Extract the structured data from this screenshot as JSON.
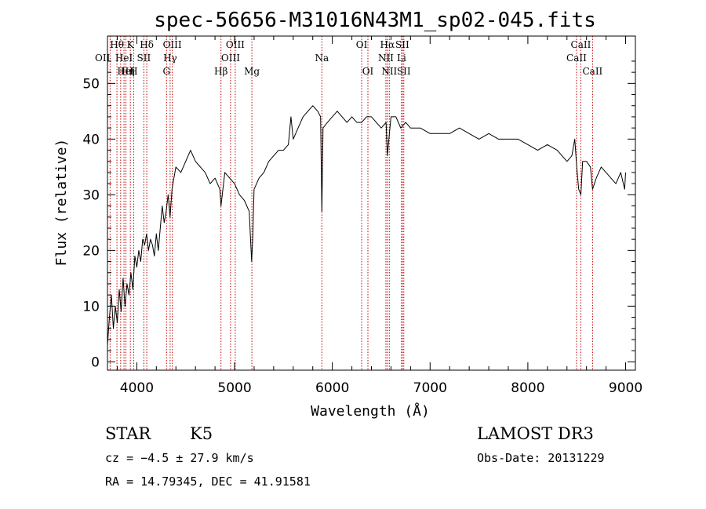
{
  "chart_data": {
    "type": "line",
    "title": "spec-56656-M31016N43M1_sp02-045.fits",
    "xlabel": "Wavelength (Å)",
    "ylabel": "Flux (relative)",
    "xlim": [
      3700,
      9100
    ],
    "ylim": [
      -1.5,
      58.5
    ],
    "xticks": [
      4000,
      5000,
      6000,
      7000,
      8000,
      9000
    ],
    "yticks": [
      0,
      10,
      20,
      30,
      40,
      50
    ],
    "series": [
      {
        "name": "flux",
        "x": [
          3700,
          3720,
          3740,
          3760,
          3780,
          3800,
          3820,
          3840,
          3860,
          3880,
          3900,
          3920,
          3940,
          3960,
          3980,
          4000,
          4020,
          4040,
          4060,
          4080,
          4100,
          4120,
          4140,
          4160,
          4180,
          4200,
          4220,
          4240,
          4260,
          4280,
          4300,
          4320,
          4340,
          4360,
          4380,
          4400,
          4450,
          4500,
          4550,
          4600,
          4650,
          4700,
          4750,
          4800,
          4850,
          4861,
          4900,
          4950,
          5000,
          5050,
          5100,
          5150,
          5175,
          5185,
          5200,
          5250,
          5300,
          5350,
          5400,
          5450,
          5500,
          5550,
          5577,
          5600,
          5650,
          5700,
          5750,
          5800,
          5850,
          5880,
          5893,
          5905,
          5950,
          6000,
          6050,
          6100,
          6150,
          6200,
          6250,
          6300,
          6350,
          6400,
          6450,
          6500,
          6550,
          6563,
          6600,
          6650,
          6700,
          6750,
          6800,
          6900,
          7000,
          7100,
          7200,
          7300,
          7400,
          7500,
          7600,
          7700,
          7800,
          7900,
          8000,
          8100,
          8200,
          8300,
          8400,
          8450,
          8480,
          8500,
          8520,
          8542,
          8560,
          8600,
          8640,
          8662,
          8700,
          8750,
          8800,
          8850,
          8900,
          8950,
          8990,
          9000
        ],
        "values": [
          3,
          8,
          12,
          6,
          10,
          7,
          13,
          9,
          15,
          10,
          14,
          12,
          16,
          13,
          19,
          17,
          20,
          18,
          22,
          21,
          23,
          20,
          22,
          21,
          19,
          23,
          20,
          24,
          28,
          25,
          27,
          30,
          26,
          31,
          33,
          35,
          34,
          36,
          38,
          36,
          35,
          34,
          32,
          33,
          31,
          28,
          34,
          33,
          32,
          30,
          29,
          27,
          18,
          22,
          31,
          33,
          34,
          36,
          37,
          38,
          38,
          39,
          44,
          40,
          42,
          44,
          45,
          46,
          45,
          44,
          27,
          42,
          43,
          44,
          45,
          44,
          43,
          44,
          43,
          43,
          44,
          44,
          43,
          42,
          43,
          37,
          44,
          44,
          42,
          43,
          42,
          42,
          41,
          41,
          41,
          42,
          41,
          40,
          41,
          40,
          40,
          40,
          39,
          38,
          39,
          38,
          36,
          37,
          40,
          35,
          31,
          30,
          36,
          36,
          35,
          31,
          33,
          35,
          34,
          33,
          32,
          34,
          31,
          34
        ]
      }
    ],
    "line_markers": [
      {
        "wave": 3797,
        "label": "Hθ",
        "row": 0,
        "anchor": "middle"
      },
      {
        "wave": 3727,
        "label": "OII",
        "row": 1,
        "anchor": "end"
      },
      {
        "wave": 3835,
        "label": "Hη",
        "row": 2,
        "anchor": "start"
      },
      {
        "wave": 3869,
        "label": "HeI",
        "row": 1,
        "anchor": "middle"
      },
      {
        "wave": 3889,
        "label": "HeI",
        "row": 2,
        "anchor": "middle"
      },
      {
        "wave": 3934,
        "label": "K",
        "row": 0,
        "anchor": "middle"
      },
      {
        "wave": 3968,
        "label": "H",
        "row": 2,
        "anchor": "middle"
      },
      {
        "wave": 4072,
        "label": "SII",
        "row": 1,
        "anchor": "middle"
      },
      {
        "wave": 4102,
        "label": "Hδ",
        "row": 0,
        "anchor": "middle"
      },
      {
        "wave": 4304,
        "label": "G",
        "row": 2,
        "anchor": "middle"
      },
      {
        "wave": 4341,
        "label": "Hγ",
        "row": 1,
        "anchor": "middle"
      },
      {
        "wave": 4363,
        "label": "OIII",
        "row": 0,
        "anchor": "middle"
      },
      {
        "wave": 4861,
        "label": "Hβ",
        "row": 2,
        "anchor": "middle"
      },
      {
        "wave": 4959,
        "label": "OIII",
        "row": 1,
        "anchor": "middle"
      },
      {
        "wave": 5007,
        "label": "OIII",
        "row": 0,
        "anchor": "middle"
      },
      {
        "wave": 5177,
        "label": "Mg",
        "row": 2,
        "anchor": "middle"
      },
      {
        "wave": 5893,
        "label": "Na",
        "row": 1,
        "anchor": "middle"
      },
      {
        "wave": 6300,
        "label": "OI",
        "row": 0,
        "anchor": "middle"
      },
      {
        "wave": 6364,
        "label": "OI",
        "row": 2,
        "anchor": "middle"
      },
      {
        "wave": 6548,
        "label": "NII",
        "row": 1,
        "anchor": "middle"
      },
      {
        "wave": 6563,
        "label": "Hα",
        "row": 0,
        "anchor": "middle"
      },
      {
        "wave": 6583,
        "label": "NII",
        "row": 2,
        "anchor": "middle"
      },
      {
        "wave": 6708,
        "label": "Li",
        "row": 1,
        "anchor": "middle"
      },
      {
        "wave": 6716,
        "label": "SII",
        "row": 0,
        "anchor": "middle"
      },
      {
        "wave": 6731,
        "label": "SII",
        "row": 2,
        "anchor": "middle"
      },
      {
        "wave": 8498,
        "label": "CaII",
        "row": 1,
        "anchor": "middle"
      },
      {
        "wave": 8542,
        "label": "CaII",
        "row": 0,
        "anchor": "middle"
      },
      {
        "wave": 8662,
        "label": "CaII",
        "row": 2,
        "anchor": "middle"
      }
    ]
  },
  "info": {
    "class": "STAR",
    "subclass": "K5",
    "survey": "LAMOST DR3",
    "cz": "cz = −4.5 ± 27.9 km/s",
    "obs_date": "Obs-Date: 20131229",
    "radec": "RA =  14.79345, DEC =  41.91581"
  },
  "colors": {
    "spectrum": "#000000",
    "marker": "#c00000",
    "axes": "#000000"
  }
}
